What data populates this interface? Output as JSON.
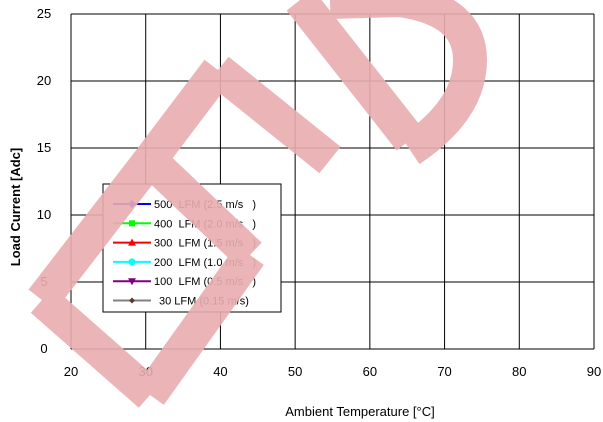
{
  "chart_data": {
    "type": "line",
    "title": "",
    "xlabel": "Ambient Temperature [°C]",
    "ylabel": "Load Current  [Adc]",
    "xlim": [
      20,
      90
    ],
    "ylim": [
      0,
      25
    ],
    "x_ticks": [
      "20",
      "30",
      "40",
      "50",
      "60",
      "70",
      "80",
      "90"
    ],
    "y_ticks": [
      "0",
      "5",
      "10",
      "15",
      "20",
      "25"
    ],
    "grid": true,
    "legend_position": "left-middle",
    "watermark": "END",
    "series": [
      {
        "name": "500  LFM (2.5 m/s   )",
        "color": "#0000ff",
        "marker": "diamond",
        "values": []
      },
      {
        "name": "400  LFM (2.0 m/s   )",
        "color": "#00ff00",
        "marker": "square",
        "values": []
      },
      {
        "name": "300  LFM (1.5 m/s   )",
        "color": "#ff0000",
        "marker": "triangle-up",
        "values": []
      },
      {
        "name": "200  LFM (1.0 m/s   )",
        "color": "#00ffff",
        "marker": "circle",
        "values": []
      },
      {
        "name": "100  LFM (0.5 m/s   )",
        "color": "#800080",
        "marker": "triangle-down",
        "values": []
      },
      {
        "name": "30 LFM (0.15 m/s)",
        "color": "#808080",
        "marker": "small-diamond",
        "values": []
      }
    ]
  }
}
